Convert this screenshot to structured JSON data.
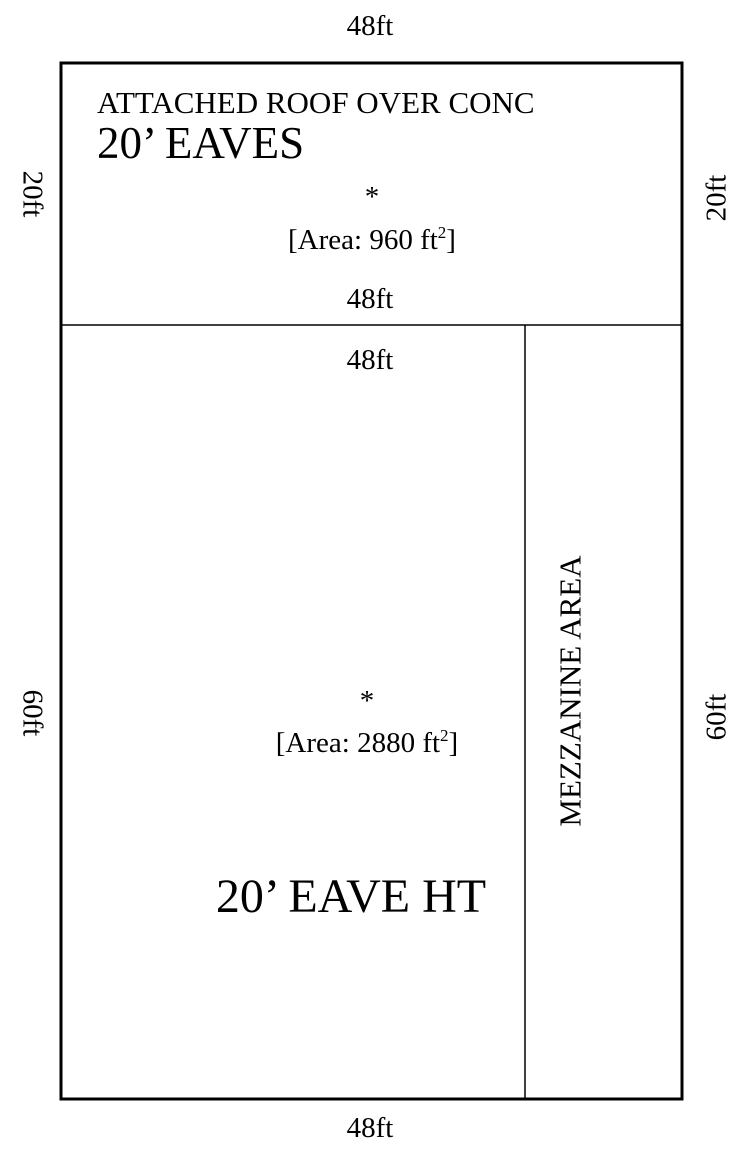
{
  "floorplan": {
    "outer": {
      "top_width": "48ft",
      "bottom_width": "48ft",
      "left_top_height": "20ft",
      "right_top_height": "20ft",
      "left_bottom_height": "60ft",
      "right_bottom_height": "60ft"
    },
    "upper_room": {
      "title": "ATTACHED ROOF OVER CONC",
      "subtitle": "20’ EAVES",
      "marker": "*",
      "area_prefix": "[Area: 960 ft",
      "area_exp": "2",
      "area_suffix": "]",
      "inner_bottom_width": "48ft"
    },
    "lower_room": {
      "inner_top_width": "48ft",
      "marker": "*",
      "area_prefix": "[Area: 2880 ft",
      "area_exp": "2",
      "area_suffix": "]",
      "eave_label": "20’ EAVE HT"
    },
    "mezzanine": {
      "label": "MEZZANINE AREA"
    }
  }
}
